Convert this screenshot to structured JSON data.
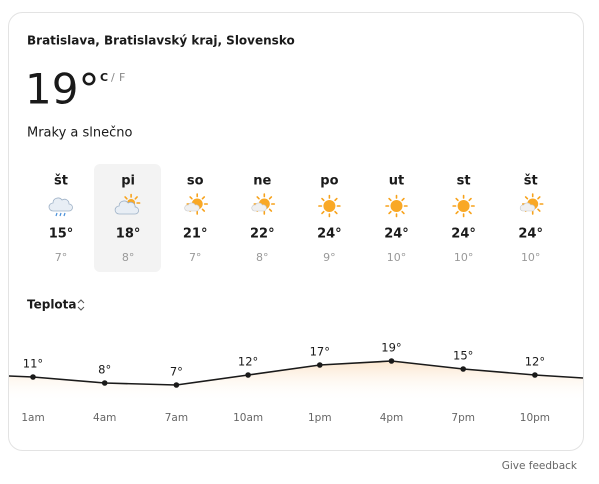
{
  "location": "Bratislava, Bratislavský kraj, Slovensko",
  "current": {
    "temperature": "19°",
    "unit_c": "C",
    "unit_sep": "/",
    "unit_f": "F",
    "condition": "Mraky a slnečno"
  },
  "forecast": [
    {
      "day": "št",
      "high": "15°",
      "low": "7°"
    },
    {
      "day": "pi",
      "high": "18°",
      "low": "8°"
    },
    {
      "day": "so",
      "high": "21°",
      "low": "7°"
    },
    {
      "day": "ne",
      "high": "22°",
      "low": "8°"
    },
    {
      "day": "po",
      "high": "24°",
      "low": "9°"
    },
    {
      "day": "ut",
      "high": "24°",
      "low": "10°"
    },
    {
      "day": "st",
      "high": "24°",
      "low": "10°"
    },
    {
      "day": "št",
      "high": "24°",
      "low": "10°"
    }
  ],
  "metric_label": "Teplota",
  "chart_data": {
    "type": "line",
    "x": [
      "1am",
      "4am",
      "7am",
      "10am",
      "1pm",
      "4pm",
      "7pm",
      "10pm"
    ],
    "values": [
      11,
      8,
      7,
      12,
      17,
      19,
      15,
      12
    ],
    "value_labels": [
      "11°",
      "8°",
      "7°",
      "12°",
      "17°",
      "19°",
      "15°",
      "12°"
    ]
  },
  "feedback": "Give feedback"
}
